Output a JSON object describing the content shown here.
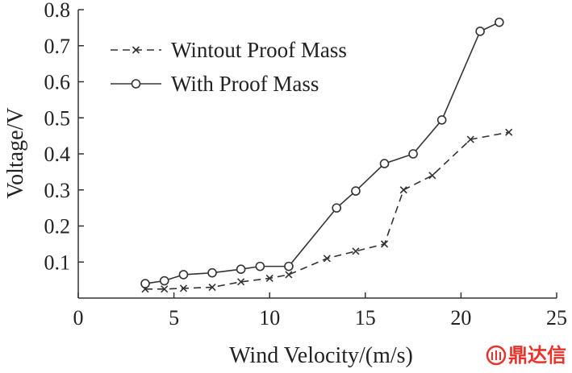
{
  "chart_data": {
    "type": "line",
    "xlabel": "Wind Velocity/(m/s)",
    "ylabel": "Voltage/V",
    "xlim": [
      0,
      25
    ],
    "ylim": [
      0,
      0.8
    ],
    "x_ticks": [
      0,
      5,
      10,
      15,
      20,
      25
    ],
    "y_ticks": [
      0.1,
      0.2,
      0.3,
      0.4,
      0.5,
      0.6,
      0.7,
      0.8
    ],
    "x_tick_labels": [
      "0",
      "5",
      "10",
      "15",
      "20",
      "25"
    ],
    "y_tick_labels": [
      "0.1",
      "0.2",
      "0.3",
      "0.4",
      "0.5",
      "0.6",
      "0.7",
      "0.8"
    ],
    "grid": false,
    "legend_position": "top-left",
    "series": [
      {
        "name": "Wintout Proof Mass",
        "style": "dashed",
        "marker": "x",
        "x": [
          3.5,
          4.5,
          5.5,
          7.0,
          8.5,
          10.0,
          11.0,
          13.0,
          14.5,
          16.0,
          17.0,
          18.5,
          20.5,
          22.5
        ],
        "y": [
          0.025,
          0.025,
          0.027,
          0.03,
          0.045,
          0.055,
          0.065,
          0.11,
          0.13,
          0.15,
          0.3,
          0.34,
          0.44,
          0.46
        ]
      },
      {
        "name": "With Proof Mass",
        "style": "solid",
        "marker": "o",
        "x": [
          3.5,
          4.5,
          5.5,
          7.0,
          8.5,
          9.5,
          11.0,
          13.5,
          14.5,
          16.0,
          17.5,
          19.0,
          21.0,
          22.0
        ],
        "y": [
          0.04,
          0.048,
          0.065,
          0.07,
          0.08,
          0.088,
          0.088,
          0.25,
          0.297,
          0.373,
          0.4,
          0.494,
          0.74,
          0.765
        ]
      }
    ]
  },
  "watermark": {
    "text": "鼎达信"
  }
}
